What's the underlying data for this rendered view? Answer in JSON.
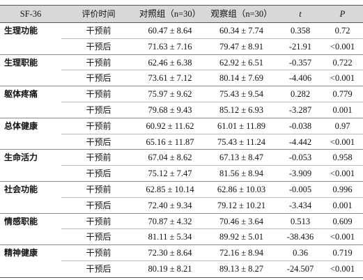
{
  "table": {
    "header": [
      "SF-36",
      "评价时间",
      "对照组（n=30）",
      "观察组（n=30）",
      "t",
      "P"
    ],
    "groups": [
      {
        "name": "生理功能",
        "rows": [
          [
            "干预前",
            "60.47 ± 8.64",
            "60.34 ± 7.74",
            "0.358",
            "0.72"
          ],
          [
            "干预后",
            "71.63 ± 7.16",
            "79.47 ± 8.91",
            "-21.91",
            "<0.001"
          ]
        ]
      },
      {
        "name": "生理职能",
        "rows": [
          [
            "干预前",
            "62.46 ± 6.38",
            "62.92 ± 6.51",
            "-0.357",
            "0.722"
          ],
          [
            "干预后",
            "73.61 ± 7.12",
            "80.14 ± 7.69",
            "-4.406",
            "<0.001"
          ]
        ]
      },
      {
        "name": "躯体疼痛",
        "rows": [
          [
            "干预前",
            "75.97 ± 9.62",
            "75.43 ± 9.54",
            "0.282",
            "0.779"
          ],
          [
            "干预后",
            "79.68 ± 9.43",
            "85.12 ± 6.93",
            "-3.287",
            "0.001"
          ]
        ]
      },
      {
        "name": "总体健康",
        "rows": [
          [
            "干预前",
            "60.92 ± 11.62",
            "61.01 ± 11.89",
            "-0.038",
            "0.97"
          ],
          [
            "干预后",
            "65.16 ± 11.87",
            "75.43 ± 11.24",
            "-4.442",
            "<0.001"
          ]
        ]
      },
      {
        "name": "生命活力",
        "rows": [
          [
            "干预前",
            "67.04 ± 8.62",
            "67.13 ± 8.47",
            "-0.053",
            "0.958"
          ],
          [
            "干预后",
            "75.12 ± 7.47",
            "81.56 ± 8.94",
            "-3.909",
            "<0.001"
          ]
        ]
      },
      {
        "name": "社会功能",
        "rows": [
          [
            "干预前",
            "62.85 ± 10.14",
            "62.86 ± 10.03",
            "-0.005",
            "0.996"
          ],
          [
            "干预后",
            "72.40 ± 9.34",
            "79.12 ± 10.21",
            "-3.434",
            "0.001"
          ]
        ]
      },
      {
        "name": "情感职能",
        "rows": [
          [
            "干预前",
            "70.87 ± 4.32",
            "70.46 ± 3.64",
            "0.513",
            "0.609"
          ],
          [
            "干预后",
            "81.11 ± 5.34",
            "89.92 ± 5.01",
            "-38.436",
            "<0.001"
          ]
        ]
      },
      {
        "name": "精神健康",
        "rows": [
          [
            "干预前",
            "72.30 ± 8.64",
            "72.16 ± 8.94",
            "0.36",
            "0.719"
          ],
          [
            "干预后",
            "80.19 ± 8.21",
            "89.13 ± 8.27",
            "-24.507",
            "<0.001"
          ]
        ]
      }
    ]
  }
}
